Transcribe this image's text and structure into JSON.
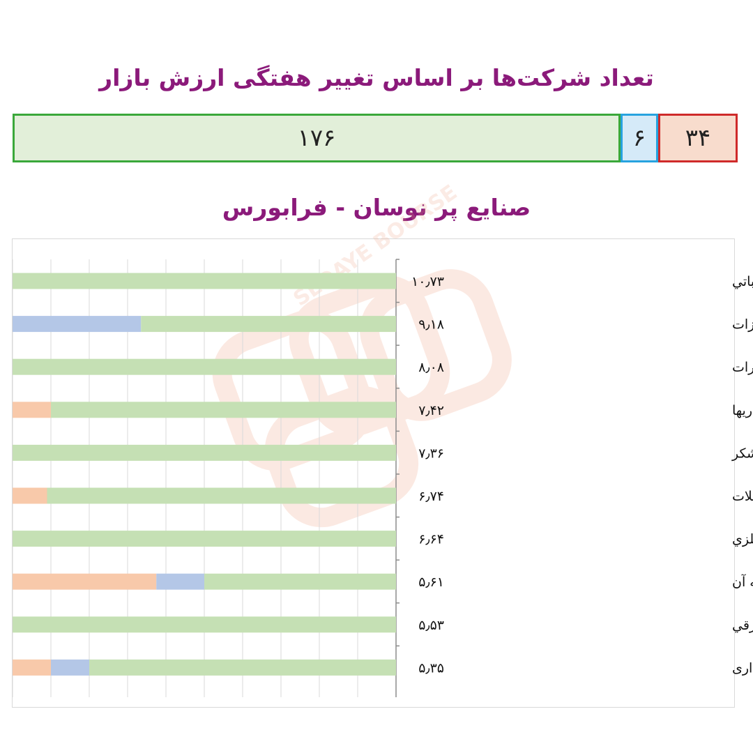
{
  "header": {
    "title": "تعداد شرکت‌ها بر اساس تغییر هفتگی ارزش بازار",
    "title_color": "#8b1a7a"
  },
  "count_bar": {
    "segments": [
      {
        "value": 176,
        "label": "۱۷۶",
        "fill": "#e2efd9",
        "border": "#3aa83a"
      },
      {
        "value": 6,
        "label": "۶",
        "fill": "#d5eaf8",
        "border": "#27a3df"
      },
      {
        "value": 34,
        "label": "۳۴",
        "fill": "#f8dccd",
        "border": "#cf2a2a"
      }
    ]
  },
  "subtitle": "صنایع پر نوسان - فرابورس",
  "watermark": {
    "text": "SEDAYE BOURSE",
    "color": "#f0a080"
  },
  "chart_data": {
    "type": "bar",
    "orientation": "horizontal-stacked",
    "categories": [
      "تولید ماشین آلات اداري، حسابداري و محاسباتي",
      "ماشین آلات و تجهیزات",
      "مخابرات",
      "سرمایه گذاریها",
      "قند و شکر",
      "انبوه سازی املاک و مستغلات",
      "سایر محصولات کاني غیر فلزي",
      "رایانه و فعالیتهای وابسته به آن",
      "ماشین آلات و دستگاه هاي برقي",
      "حمل و نقل و انبارداری"
    ],
    "value_labels": [
      "۱۰٫۷۳",
      "۹٫۱۸",
      "۸٫۰۸",
      "۷٫۴۲",
      "۷٫۳۶",
      "۶٫۷۴",
      "۶٫۶۴",
      "۵٫۶۱",
      "۵٫۵۳",
      "۵٫۳۵"
    ],
    "values": [
      10.73,
      9.18,
      8.08,
      7.42,
      7.36,
      6.74,
      6.64,
      5.61,
      5.53,
      5.35
    ],
    "series": [
      {
        "values": [
          0,
          0,
          0,
          10,
          0,
          9,
          0,
          37.5,
          0,
          10
        ],
        "color": "#f8c9aa"
      },
      {
        "values": [
          0,
          33.5,
          0,
          0,
          0,
          0,
          0,
          12.5,
          0,
          10
        ],
        "color": "#b4c7e7"
      },
      {
        "values": [
          100,
          66.5,
          100,
          90,
          100,
          91,
          100,
          50,
          100,
          80
        ],
        "color": "#c5e0b4"
      }
    ],
    "xlim": [
      0,
      100
    ],
    "grid": true,
    "direction": "right-to-left",
    "legend": "none"
  }
}
